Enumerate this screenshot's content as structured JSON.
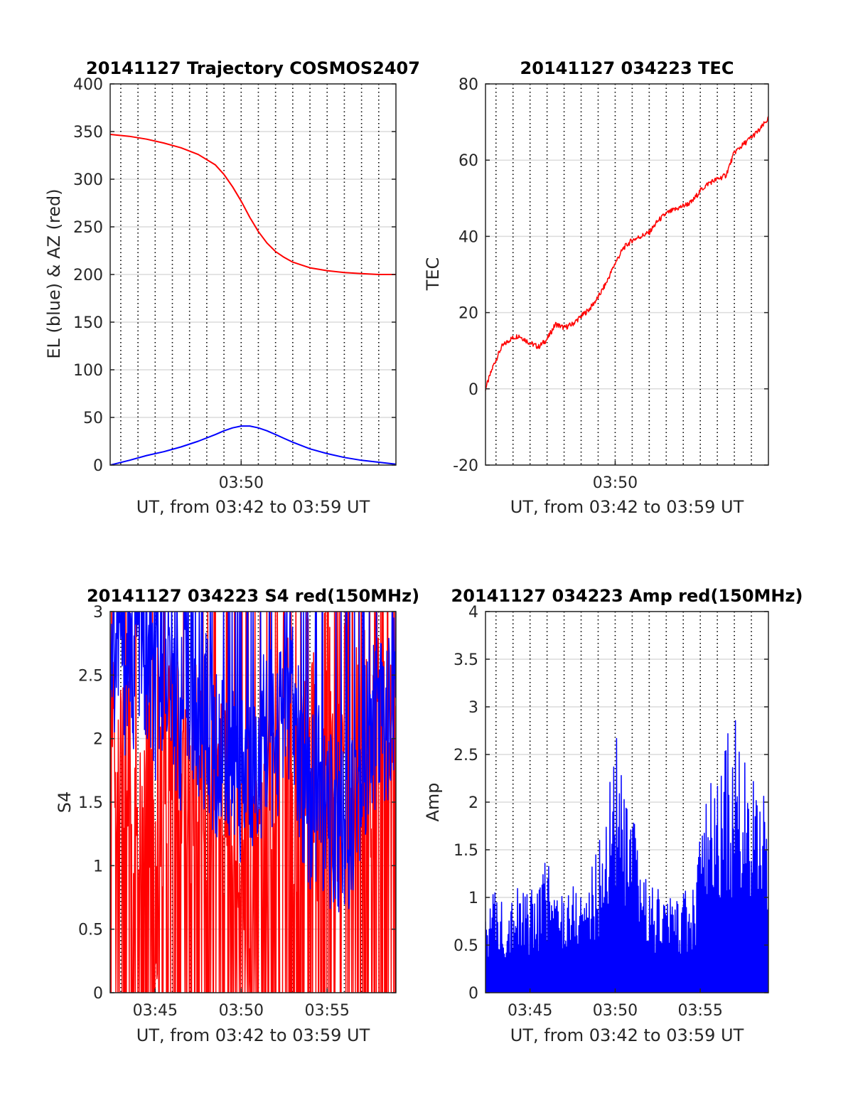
{
  "panels": [
    {
      "title": "20141127 Trajectory COSMOS2407",
      "xlabel": "UT, from 03:42 to 03:59 UT",
      "ylabel": "EL (blue) & AZ (red)",
      "yticks": [
        "0",
        "50",
        "100",
        "150",
        "200",
        "250",
        "300",
        "350",
        "400"
      ],
      "xticks": [
        "03:50"
      ]
    },
    {
      "title": "20141127 034223 TEC",
      "xlabel": "UT, from 03:42 to 03:59 UT",
      "ylabel": "TEC",
      "yticks": [
        "-20",
        "0",
        "20",
        "40",
        "60",
        "80"
      ],
      "xticks": [
        "03:50"
      ]
    },
    {
      "title": "20141127 034223 S4 red(150MHz)",
      "xlabel": "UT, from 03:42 to 03:59 UT",
      "ylabel": "S4",
      "yticks": [
        "0",
        "0.5",
        "1",
        "1.5",
        "2",
        "2.5",
        "3"
      ],
      "xticks": [
        "03:45",
        "03:50",
        "03:55"
      ]
    },
    {
      "title": "20141127 034223 Amp red(150MHz)",
      "xlabel": "UT, from 03:42 to 03:59 UT",
      "ylabel": "Amp",
      "yticks": [
        "0",
        "0.5",
        "1",
        "1.5",
        "2",
        "2.5",
        "3",
        "3.5",
        "4"
      ],
      "xticks": [
        "03:45",
        "03:50",
        "03:55"
      ]
    }
  ],
  "chart_data": [
    {
      "type": "line",
      "title": "20141127 Trajectory COSMOS2407",
      "xlabel": "UT, from 03:42 to 03:59 UT",
      "ylabel": "EL (blue) & AZ (red)",
      "xlim": [
        "03:42:23",
        "03:59:00"
      ],
      "ylim": [
        0,
        400
      ],
      "grid": true,
      "colors": {
        "EL": "#0000ff",
        "AZ": "#ff0000"
      },
      "x": [
        "03:42:23",
        "03:43:30",
        "03:44:30",
        "03:45:30",
        "03:46:30",
        "03:47:30",
        "03:48:30",
        "03:49:00",
        "03:49:30",
        "03:50:00",
        "03:50:30",
        "03:51:00",
        "03:51:30",
        "03:52:00",
        "03:52:30",
        "03:53:00",
        "03:54:00",
        "03:55:00",
        "03:56:00",
        "03:57:00",
        "03:58:00",
        "03:59:00"
      ],
      "series": [
        {
          "name": "AZ",
          "values": [
            347,
            345,
            342,
            338,
            333,
            326,
            315,
            305,
            292,
            277,
            260,
            245,
            233,
            224,
            218,
            213,
            207,
            204,
            202,
            201,
            200,
            200
          ]
        },
        {
          "name": "EL",
          "values": [
            0,
            5,
            10,
            14,
            19,
            25,
            32,
            36,
            39,
            41,
            41,
            39,
            36,
            32,
            28,
            24,
            17,
            12,
            8,
            5,
            3,
            1
          ]
        }
      ]
    },
    {
      "type": "line",
      "title": "20141127 034223 TEC",
      "xlabel": "UT, from 03:42 to 03:59 UT",
      "ylabel": "TEC",
      "xlim": [
        "03:42:23",
        "03:59:00"
      ],
      "ylim": [
        -20,
        80
      ],
      "grid": true,
      "colors": {
        "TEC": "#ff0000"
      },
      "x": [
        "03:42:23",
        "03:42:50",
        "03:43:20",
        "03:43:50",
        "03:44:20",
        "03:45:00",
        "03:45:30",
        "03:46:00",
        "03:46:30",
        "03:47:00",
        "03:47:30",
        "03:48:00",
        "03:48:30",
        "03:49:00",
        "03:49:30",
        "03:50:00",
        "03:50:30",
        "03:51:00",
        "03:51:30",
        "03:52:00",
        "03:52:30",
        "03:53:00",
        "03:53:30",
        "03:54:00",
        "03:54:30",
        "03:55:00",
        "03:55:30",
        "03:56:00",
        "03:56:30",
        "03:57:00",
        "03:57:30",
        "03:58:00",
        "03:58:30",
        "03:59:00"
      ],
      "series": [
        {
          "name": "TEC",
          "values": [
            0,
            6,
            11,
            13,
            14,
            12,
            11,
            13,
            17,
            16,
            17,
            19,
            21,
            24,
            28,
            33,
            37,
            39,
            40,
            41,
            44,
            46,
            47,
            48,
            49,
            52,
            54,
            55,
            56,
            62,
            64,
            66,
            68,
            71
          ]
        }
      ]
    },
    {
      "type": "line",
      "title": "20141127 034223 S4 red(150MHz)",
      "xlabel": "UT, from 03:42 to 03:59 UT",
      "ylabel": "S4",
      "xlim": [
        "03:42:23",
        "03:59:00"
      ],
      "ylim": [
        0,
        3
      ],
      "grid": true,
      "colors": {
        "red": "#ff0000",
        "blue": "#0000ff"
      },
      "x": [
        "03:42:23",
        "03:43:00",
        "03:43:30",
        "03:44:00",
        "03:44:30",
        "03:45:00",
        "03:45:30",
        "03:46:00",
        "03:46:30",
        "03:47:00",
        "03:47:30",
        "03:48:00",
        "03:48:30",
        "03:49:00",
        "03:49:30",
        "03:50:00",
        "03:50:30",
        "03:51:00",
        "03:51:30",
        "03:52:00",
        "03:52:30",
        "03:53:00",
        "03:53:30",
        "03:54:00",
        "03:54:30",
        "03:55:00",
        "03:55:30",
        "03:56:00",
        "03:56:30",
        "03:57:00",
        "03:57:30",
        "03:58:00",
        "03:58:30",
        "03:59:00"
      ],
      "series": [
        {
          "name": "red",
          "values": [
            2.4,
            1.6,
            2.0,
            1.4,
            2.1,
            0.6,
            1.8,
            2.2,
            1.7,
            1.6,
            1.9,
            1.5,
            1.7,
            1.5,
            1.3,
            0.9,
            0.6,
            1.1,
            1.0,
            1.6,
            2.5,
            1.4,
            1.7,
            2.6,
            1.2,
            2.8,
            1.1,
            2.4,
            1.5,
            2.9,
            1.3,
            2.5,
            1.4,
            2.7
          ]
        },
        {
          "name": "blue",
          "values": [
            2.6,
            2.8,
            2.3,
            2.9,
            2.5,
            2.2,
            2.7,
            2.4,
            2.1,
            2.5,
            1.9,
            2.2,
            1.8,
            1.9,
            1.7,
            1.6,
            1.7,
            1.8,
            2.1,
            1.9,
            2.4,
            2.2,
            1.7,
            1.5,
            1.6,
            1.3,
            1.4,
            1.2,
            1.5,
            1.8,
            2.0,
            2.2,
            2.1,
            2.4
          ]
        }
      ]
    },
    {
      "type": "line",
      "title": "20141127 034223 Amp red(150MHz)",
      "xlabel": "UT, from 03:42 to 03:59 UT",
      "ylabel": "Amp",
      "xlim": [
        "03:42:23",
        "03:59:00"
      ],
      "ylim": [
        0,
        4
      ],
      "grid": true,
      "colors": {
        "Amp": "#0000ff"
      },
      "x": [
        "03:42:23",
        "03:43:00",
        "03:43:30",
        "03:44:00",
        "03:44:30",
        "03:45:00",
        "03:45:30",
        "03:46:00",
        "03:46:30",
        "03:47:00",
        "03:47:30",
        "03:48:00",
        "03:48:30",
        "03:49:00",
        "03:49:30",
        "03:50:00",
        "03:50:30",
        "03:51:00",
        "03:51:30",
        "03:52:00",
        "03:52:30",
        "03:53:00",
        "03:53:30",
        "03:54:00",
        "03:54:30",
        "03:55:00",
        "03:55:30",
        "03:56:00",
        "03:56:30",
        "03:57:00",
        "03:57:30",
        "03:58:00",
        "03:58:30",
        "03:59:00"
      ],
      "series": [
        {
          "name": "Amp",
          "values": [
            1.05,
            1.1,
            1.0,
            1.2,
            1.1,
            1.05,
            1.2,
            1.5,
            1.1,
            1.15,
            1.2,
            1.2,
            1.3,
            1.55,
            2.0,
            3.05,
            2.1,
            1.9,
            1.5,
            1.2,
            1.1,
            1.1,
            1.05,
            1.1,
            1.0,
            1.8,
            2.2,
            2.3,
            2.7,
            2.9,
            2.6,
            2.3,
            2.0,
            2.4
          ]
        }
      ]
    }
  ]
}
